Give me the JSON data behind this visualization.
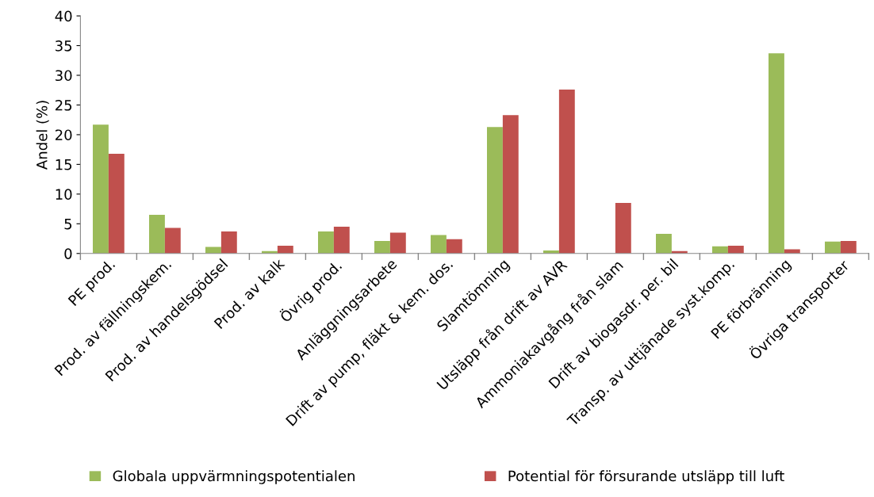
{
  "chart_data": {
    "type": "bar",
    "ylabel": "Andel (%)",
    "categories": [
      "PE prod.",
      "Prod. av fällningskem.",
      "Prod. av handelsgödsel",
      "Prod. av kalk",
      "Övrig prod.",
      "Anläggningsarbete",
      "Drift av pump, fläkt & kem. dos.",
      "Slamtömning",
      "Utsläpp från drift av AVR",
      "Ammoniakavgång från slam",
      "Drift av biogasdr. per. bil",
      "Transp. av uttjänade syst.komp.",
      "PE förbränning",
      "Övriga transporter"
    ],
    "series": [
      {
        "name": "Globala uppvärmningspotentialen",
        "color": "#9bbb59",
        "values": [
          21.7,
          6.5,
          1.1,
          0.4,
          3.7,
          2.1,
          3.1,
          21.3,
          0.5,
          0,
          3.3,
          1.2,
          33.7,
          2.0
        ]
      },
      {
        "name": "Potential för försurande utsläpp till luft",
        "color": "#c0504d",
        "values": [
          16.8,
          4.3,
          3.7,
          1.3,
          4.5,
          3.5,
          2.4,
          23.3,
          27.6,
          8.5,
          0.4,
          1.3,
          0.7,
          2.1
        ]
      }
    ],
    "ylim": [
      0,
      40
    ],
    "yticks": [
      0,
      5,
      10,
      15,
      20,
      25,
      30,
      35,
      40
    ],
    "grid": false,
    "legend": "bottom"
  }
}
